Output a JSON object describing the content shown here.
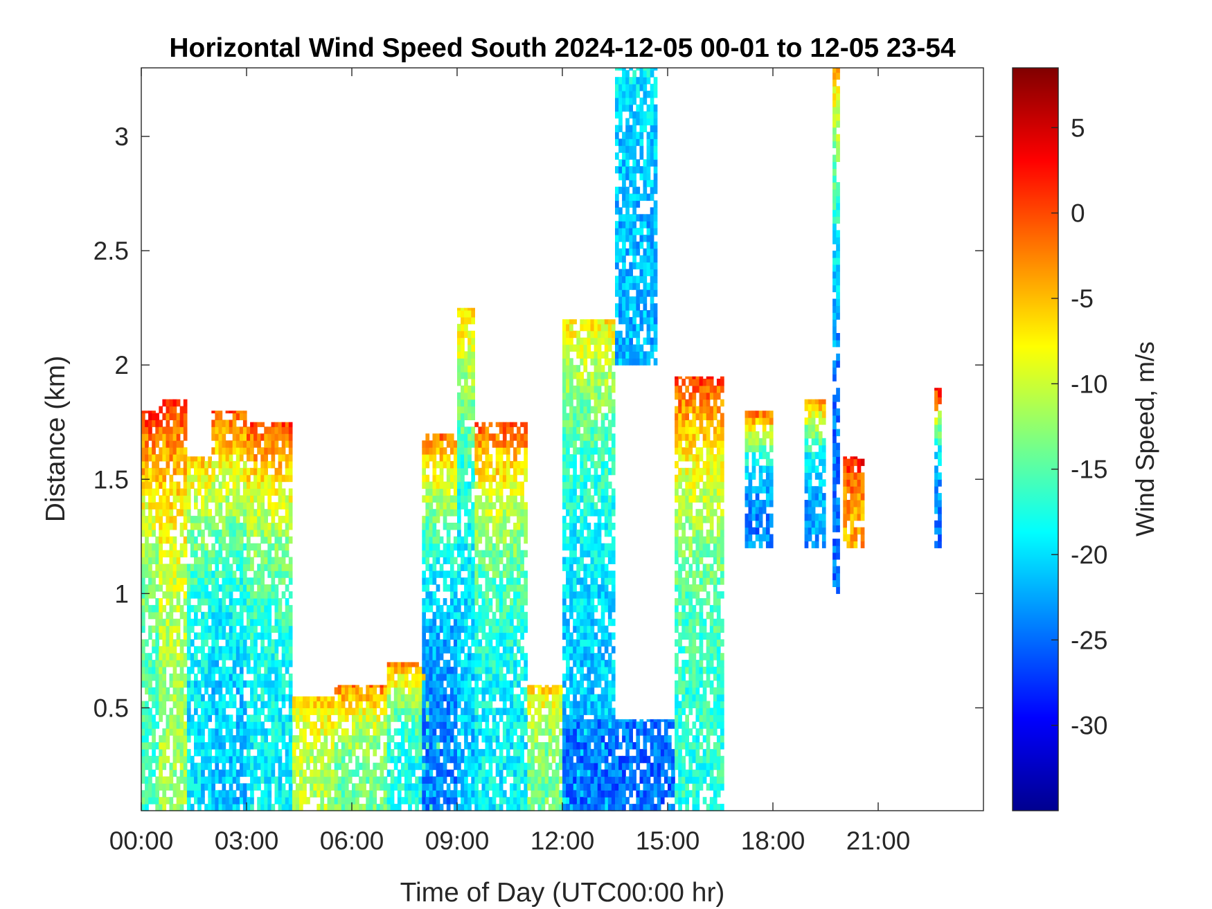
{
  "chart_data": {
    "type": "heatmap",
    "title": "Horizontal Wind Speed South 2024-12-05 00-01 to 12-05 23-54",
    "xlabel": "Time of Day (UTC00:00 hr)",
    "ylabel": "Distance (km)",
    "colorbar_label": "Wind Speed, m/s",
    "x_unit": "hours",
    "xlim": [
      0,
      24
    ],
    "ylim": [
      0.05,
      3.3
    ],
    "clim": [
      -35,
      8.5
    ],
    "colormap": "jet",
    "grid": false,
    "x_ticks": [
      {
        "value": 0,
        "label": "00:00"
      },
      {
        "value": 3,
        "label": "03:00"
      },
      {
        "value": 6,
        "label": "06:00"
      },
      {
        "value": 9,
        "label": "09:00"
      },
      {
        "value": 12,
        "label": "12:00"
      },
      {
        "value": 15,
        "label": "15:00"
      },
      {
        "value": 18,
        "label": "18:00"
      },
      {
        "value": 21,
        "label": "21:00"
      }
    ],
    "y_ticks": [
      {
        "value": 0.5,
        "label": "0.5"
      },
      {
        "value": 1,
        "label": "1"
      },
      {
        "value": 1.5,
        "label": "1.5"
      },
      {
        "value": 2,
        "label": "2"
      },
      {
        "value": 2.5,
        "label": "2.5"
      },
      {
        "value": 3,
        "label": "3"
      }
    ],
    "colorbar_ticks": [
      {
        "value": 5,
        "label": "5"
      },
      {
        "value": 0,
        "label": "0"
      },
      {
        "value": -5,
        "label": "-5"
      },
      {
        "value": -10,
        "label": "-10"
      },
      {
        "value": -15,
        "label": "-15"
      },
      {
        "value": -20,
        "label": "-20"
      },
      {
        "value": -25,
        "label": "-25"
      },
      {
        "value": -30,
        "label": "-30"
      }
    ],
    "data_regions": [
      {
        "t_start": 0.0,
        "t_end": 0.5,
        "d_start": 0.05,
        "d_end": 1.8,
        "top_value": 2,
        "body_value": -16
      },
      {
        "t_start": 0.5,
        "t_end": 1.3,
        "d_start": 0.05,
        "d_end": 1.85,
        "top_value": 1,
        "body_value": -12
      },
      {
        "t_start": 1.3,
        "t_end": 2.0,
        "d_start": 0.05,
        "d_end": 1.6,
        "top_value": -5,
        "body_value": -20
      },
      {
        "t_start": 2.0,
        "t_end": 3.0,
        "d_start": 0.05,
        "d_end": 1.8,
        "top_value": 0,
        "body_value": -21
      },
      {
        "t_start": 3.0,
        "t_end": 4.3,
        "d_start": 0.05,
        "d_end": 1.75,
        "top_value": 1,
        "body_value": -19
      },
      {
        "t_start": 4.3,
        "t_end": 5.5,
        "d_start": 0.05,
        "d_end": 0.55,
        "top_value": -5,
        "body_value": -11
      },
      {
        "t_start": 5.5,
        "t_end": 7.0,
        "d_start": 0.05,
        "d_end": 0.6,
        "top_value": -1,
        "body_value": -14
      },
      {
        "t_start": 7.0,
        "t_end": 8.5,
        "d_start": 0.05,
        "d_end": 0.7,
        "top_value": -2,
        "body_value": -18
      },
      {
        "t_start": 8.0,
        "t_end": 9.0,
        "d_start": 0.05,
        "d_end": 1.7,
        "top_value": -1,
        "body_value": -24
      },
      {
        "t_start": 9.0,
        "t_end": 9.5,
        "d_start": 0.05,
        "d_end": 2.25,
        "top_value": -6,
        "body_value": -21
      },
      {
        "t_start": 9.5,
        "t_end": 11.0,
        "d_start": 0.05,
        "d_end": 1.75,
        "top_value": 0,
        "body_value": -19
      },
      {
        "t_start": 11.0,
        "t_end": 12.0,
        "d_start": 0.05,
        "d_end": 0.6,
        "top_value": -5,
        "body_value": -14
      },
      {
        "t_start": 12.0,
        "t_end": 13.5,
        "d_start": 0.05,
        "d_end": 2.2,
        "top_value": -7,
        "body_value": -21
      },
      {
        "t_start": 13.5,
        "t_end": 14.7,
        "d_start": 2.0,
        "d_end": 3.3,
        "top_value": -19,
        "body_value": -22
      },
      {
        "t_start": 12.0,
        "t_end": 15.2,
        "d_start": 0.05,
        "d_end": 0.45,
        "top_value": -24,
        "body_value": -25
      },
      {
        "t_start": 15.2,
        "t_end": 16.6,
        "d_start": 0.05,
        "d_end": 1.95,
        "top_value": 1,
        "body_value": -17
      },
      {
        "t_start": 17.2,
        "t_end": 18.0,
        "d_start": 1.2,
        "d_end": 1.8,
        "top_value": 2,
        "body_value": -24
      },
      {
        "t_start": 18.9,
        "t_end": 19.5,
        "d_start": 1.2,
        "d_end": 1.85,
        "top_value": -1,
        "body_value": -23
      },
      {
        "t_start": 19.7,
        "t_end": 19.9,
        "d_start": 1.0,
        "d_end": 3.3,
        "top_value": -5,
        "body_value": -25
      },
      {
        "t_start": 20.0,
        "t_end": 20.6,
        "d_start": 1.2,
        "d_end": 1.6,
        "top_value": 4,
        "body_value": -4
      },
      {
        "t_start": 22.6,
        "t_end": 22.8,
        "d_start": 1.2,
        "d_end": 1.9,
        "top_value": 5,
        "body_value": -24
      }
    ]
  }
}
